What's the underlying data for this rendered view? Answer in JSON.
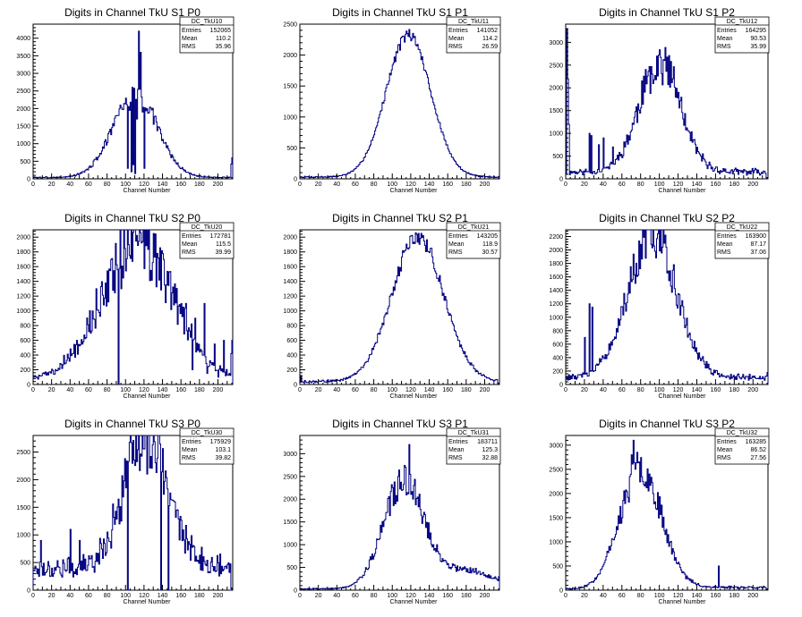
{
  "chart_data": [
    {
      "type": "bar",
      "id": "TkU10",
      "title": "Digits in Channel TkU S1 P0",
      "xlabel": "Channel Number",
      "xlim": [
        0,
        216
      ],
      "ylim": [
        0,
        4400
      ],
      "xticks": [
        0,
        20,
        40,
        60,
        80,
        100,
        120,
        140,
        160,
        180,
        200
      ],
      "yticks": [
        0,
        500,
        1000,
        1500,
        2000,
        2500,
        3000,
        3500,
        4000
      ],
      "stats": {
        "name": "DC_TkU10",
        "entries": "152065",
        "mean": "110.2",
        "rms": "35.96"
      },
      "profile": {
        "base": 40,
        "peaks": [
          [
            110,
            2380,
            24
          ]
        ],
        "noise": 0.12,
        "seed": 3,
        "spikes": [
          [
            104,
            1950
          ],
          [
            112,
            1700
          ],
          [
            114,
            4200
          ],
          [
            116,
            3600
          ],
          [
            118,
            1900
          ]
        ],
        "dips": [
          [
            102,
            300
          ],
          [
            106,
            200
          ],
          [
            108,
            400
          ],
          [
            110,
            150
          ],
          [
            120,
            300
          ]
        ],
        "tail_end": 600
      }
    },
    {
      "type": "bar",
      "id": "TkU11",
      "title": "Digits in Channel TkU S1 P1",
      "xlabel": "Channel Number",
      "xlim": [
        0,
        216
      ],
      "ylim": [
        0,
        2500
      ],
      "xticks": [
        0,
        20,
        40,
        60,
        80,
        100,
        120,
        140,
        160,
        180,
        200
      ],
      "yticks": [
        0,
        500,
        1000,
        1500,
        2000,
        2500
      ],
      "stats": {
        "name": "DC_TkU11",
        "entries": "141052",
        "mean": "114.2",
        "rms": "26.59"
      },
      "profile": {
        "base": 30,
        "peaks": [
          [
            117,
            2300,
            24
          ]
        ],
        "noise": 0.04,
        "seed": 7,
        "spikes": [],
        "dips": [],
        "tail_end": 40
      }
    },
    {
      "type": "bar",
      "id": "TkU12",
      "title": "Digits in Channel TkU S1 P2",
      "xlabel": "Channel Number",
      "xlim": [
        0,
        216
      ],
      "ylim": [
        0,
        3400
      ],
      "xticks": [
        0,
        20,
        40,
        60,
        80,
        100,
        120,
        140,
        160,
        180,
        200
      ],
      "yticks": [
        0,
        500,
        1000,
        1500,
        2000,
        2500,
        3000
      ],
      "stats": {
        "name": "DC_TkU12",
        "entries": "164295",
        "mean": "90.53",
        "rms": "35.99"
      },
      "profile": {
        "base": 150,
        "peaks": [
          [
            100,
            2420,
            22
          ]
        ],
        "noise": 0.18,
        "seed": 11,
        "spikes": [
          [
            1,
            3300
          ],
          [
            2,
            2200
          ],
          [
            3,
            1200
          ],
          [
            25,
            1000
          ],
          [
            27,
            950
          ],
          [
            35,
            750
          ],
          [
            40,
            900
          ],
          [
            50,
            700
          ]
        ],
        "dips": [],
        "tail_end": 30
      }
    },
    {
      "type": "bar",
      "id": "TkU20",
      "title": "Digits in Channel TkU S2 P0",
      "xlabel": "Channel Number",
      "xlim": [
        0,
        216
      ],
      "ylim": [
        0,
        2100
      ],
      "xticks": [
        0,
        20,
        40,
        60,
        80,
        100,
        120,
        140,
        160,
        180,
        200
      ],
      "yticks": [
        0,
        200,
        400,
        600,
        800,
        1000,
        1200,
        1400,
        1600,
        1800,
        2000
      ],
      "stats": {
        "name": "DC_TkU20",
        "entries": "172781",
        "mean": "115.5",
        "rms": "39.99"
      },
      "profile": {
        "base": 80,
        "peaks": [
          [
            112,
            1880,
            38
          ]
        ],
        "noise": 0.25,
        "seed": 5,
        "spikes": [
          [
            95,
            1300
          ],
          [
            165,
            1100
          ],
          [
            175,
            900
          ],
          [
            185,
            1100
          ],
          [
            196,
            550
          ],
          [
            206,
            600
          ]
        ],
        "dips": [
          [
            92,
            0
          ],
          [
            172,
            200
          ],
          [
            188,
            150
          ],
          [
            200,
            100
          ]
        ],
        "tail_end": 600
      }
    },
    {
      "type": "bar",
      "id": "TkU21",
      "title": "Digits in Channel TkU S2 P1",
      "xlabel": "Channel Number",
      "xlim": [
        0,
        216
      ],
      "ylim": [
        0,
        2100
      ],
      "xticks": [
        0,
        20,
        40,
        60,
        80,
        100,
        120,
        140,
        160,
        180,
        200
      ],
      "yticks": [
        0,
        200,
        400,
        600,
        800,
        1000,
        1200,
        1400,
        1600,
        1800,
        2000
      ],
      "stats": {
        "name": "DC_TkU21",
        "entries": "143205",
        "mean": "118.9",
        "rms": "30.57"
      },
      "profile": {
        "base": 40,
        "peaks": [
          [
            127,
            1960,
            28
          ]
        ],
        "noise": 0.06,
        "seed": 9,
        "spikes": [
          [
            1,
            120
          ]
        ],
        "dips": [],
        "tail_end": 20
      }
    },
    {
      "type": "bar",
      "id": "TkU22",
      "title": "Digits in Channel TkU S2 P2",
      "xlabel": "Channel Number",
      "xlim": [
        0,
        216
      ],
      "ylim": [
        0,
        2300
      ],
      "xticks": [
        0,
        20,
        40,
        60,
        80,
        100,
        120,
        140,
        160,
        180,
        200
      ],
      "yticks": [
        0,
        200,
        400,
        600,
        800,
        1000,
        1200,
        1400,
        1600,
        1800,
        2000,
        2200
      ],
      "stats": {
        "name": "DC_TkU22",
        "entries": "163900",
        "mean": "87.17",
        "rms": "37.06"
      },
      "profile": {
        "base": 100,
        "peaks": [
          [
            92,
            2120,
            26
          ]
        ],
        "noise": 0.15,
        "seed": 13,
        "spikes": [
          [
            25,
            1200
          ],
          [
            28,
            1150
          ],
          [
            20,
            700
          ],
          [
            40,
            400
          ],
          [
            45,
            450
          ]
        ],
        "dips": [],
        "tail_end": 180
      }
    },
    {
      "type": "bar",
      "id": "TkU30",
      "title": "Digits in Channel TkU S3 P0",
      "xlabel": "Channel Number",
      "xlim": [
        0,
        216
      ],
      "ylim": [
        0,
        2800
      ],
      "xticks": [
        0,
        20,
        40,
        60,
        80,
        100,
        120,
        140,
        160,
        180,
        200
      ],
      "yticks": [
        0,
        500,
        1000,
        1500,
        2000,
        2500
      ],
      "stats": {
        "name": "DC_TkU30",
        "entries": "175929",
        "mean": "103.1",
        "rms": "39.82"
      },
      "profile": {
        "base": 400,
        "peaks": [
          [
            122,
            2420,
            24
          ]
        ],
        "noise": 0.22,
        "seed": 17,
        "spikes": [
          [
            8,
            900
          ],
          [
            40,
            1100
          ],
          [
            50,
            900
          ]
        ],
        "dips": [
          [
            102,
            0
          ],
          [
            138,
            0
          ],
          [
            146,
            0
          ]
        ],
        "tail_end": 40
      }
    },
    {
      "type": "bar",
      "id": "TkU31",
      "title": "Digits in Channel TkU S3 P1",
      "xlabel": "Channel Number",
      "xlim": [
        0,
        216
      ],
      "ylim": [
        0,
        3400
      ],
      "xticks": [
        0,
        20,
        40,
        60,
        80,
        100,
        120,
        140,
        160,
        180,
        200
      ],
      "yticks": [
        0,
        500,
        1000,
        1500,
        2000,
        2500,
        3000
      ],
      "stats": {
        "name": "DC_TkU31",
        "entries": "183711",
        "mean": "125.3",
        "rms": "32.88"
      },
      "profile": {
        "base": 30,
        "peaks": [
          [
            112,
            2350,
            22
          ],
          [
            180,
            400,
            30
          ]
        ],
        "noise": 0.15,
        "seed": 19,
        "spikes": [
          [
            118,
            3200
          ],
          [
            114,
            2700
          ],
          [
            106,
            2500
          ]
        ],
        "dips": [],
        "tail_end": 300
      }
    },
    {
      "type": "bar",
      "id": "TkU32",
      "title": "Digits in Channel TkU S3 P2",
      "xlabel": "Channel Number",
      "xlim": [
        0,
        216
      ],
      "ylim": [
        0,
        3200
      ],
      "xticks": [
        0,
        20,
        40,
        60,
        80,
        100,
        120,
        140,
        160,
        180,
        200
      ],
      "yticks": [
        0,
        500,
        1000,
        1500,
        2000,
        2500,
        3000
      ],
      "stats": {
        "name": "DC_TkU32",
        "entries": "163285",
        "mean": "86.52",
        "rms": "27.56"
      },
      "profile": {
        "base": 60,
        "peaks": [
          [
            80,
            2450,
            22
          ]
        ],
        "noise": 0.14,
        "seed": 23,
        "spikes": [
          [
            72,
            3100
          ],
          [
            70,
            2800
          ],
          [
            76,
            2850
          ],
          [
            163,
            500
          ]
        ],
        "dips": [],
        "tail_end": 20,
        "start": 40
      }
    }
  ],
  "statbox_labels": {
    "entries": "Entries",
    "mean": "Mean",
    "rms": "RMS"
  },
  "colors": {
    "hist": "#000080",
    "axis": "#000000",
    "frame": "#000000"
  }
}
